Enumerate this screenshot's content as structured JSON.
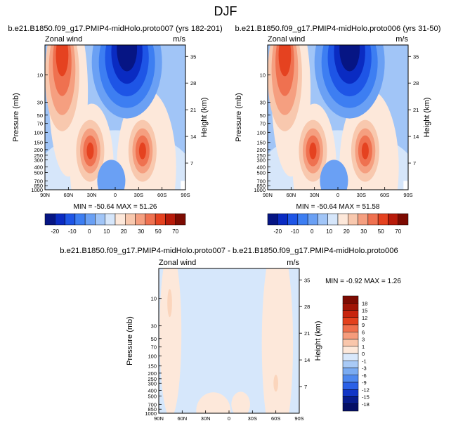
{
  "page_title": "DJF",
  "panels": [
    {
      "title": "b.e21.B1850.f09_g17.PMIP4-midHolo.proto007 (yrs 182-201)",
      "left_label": "Zonal wind",
      "right_label": "m/s",
      "stats": "MIN = -50.64  MAX = 51.26"
    },
    {
      "title": "b.e21.B1850.f09_g17.PMIP4-midHolo.proto006 (yrs 31-50)",
      "left_label": "Zonal wind",
      "right_label": "m/s",
      "stats": "MIN = -50.64  MAX = 51.58"
    },
    {
      "title": "b.e21.B1850.f09_g17.PMIP4-midHolo.proto007 - b.e21.B1850.f09_g17.PMIP4-midHolo.proto006",
      "left_label": "Zonal wind",
      "right_label": "m/s",
      "stats": "MIN = -0.92  MAX =  1.26"
    }
  ],
  "chart_data": [
    {
      "type": "heatmap",
      "title": "b.e21.B1850.f09_g17.PMIP4-midHolo.proto007 (yrs 182-201)",
      "variable": "Zonal wind",
      "units": "m/s",
      "xlabel": "",
      "ylabel": "Pressure (mb)",
      "ylabel_right": "Height (km)",
      "x_ticks": [
        "90N",
        "60N",
        "30N",
        "0",
        "30S",
        "60S",
        "90S"
      ],
      "y_ticks": [
        "10",
        "30",
        "50",
        "70",
        "100",
        "150",
        "200",
        "250",
        "300",
        "400",
        "500",
        "700",
        "850",
        "1000"
      ],
      "y_ticks_right": [
        "35",
        "28",
        "21",
        "14",
        "7"
      ],
      "ylim": [
        1000,
        3
      ],
      "y_scale": "log",
      "min": -50.64,
      "max": 51.26,
      "colorbar_levels": [
        -20,
        -10,
        0,
        10,
        20,
        30,
        50,
        70
      ],
      "features": [
        {
          "kind": "westerly jet",
          "lat": -35,
          "pressure": 200,
          "value": 40
        },
        {
          "kind": "westerly jet",
          "lat": 32,
          "pressure": 200,
          "value": 40
        },
        {
          "kind": "polar night jet",
          "lat": 65,
          "pressure": 8,
          "value": 50
        },
        {
          "kind": "easterlies",
          "lat": -15,
          "pressure": 5,
          "value": -50
        }
      ]
    },
    {
      "type": "heatmap",
      "title": "b.e21.B1850.f09_g17.PMIP4-midHolo.proto006 (yrs 31-50)",
      "variable": "Zonal wind",
      "units": "m/s",
      "xlabel": "",
      "ylabel": "Pressure (mb)",
      "ylabel_right": "Height (km)",
      "x_ticks": [
        "90N",
        "60N",
        "30N",
        "0",
        "30S",
        "60S",
        "90S"
      ],
      "y_ticks": [
        "10",
        "30",
        "50",
        "70",
        "100",
        "150",
        "200",
        "250",
        "300",
        "400",
        "500",
        "700",
        "850",
        "1000"
      ],
      "y_ticks_right": [
        "35",
        "28",
        "21",
        "14",
        "7"
      ],
      "ylim": [
        1000,
        3
      ],
      "y_scale": "log",
      "min": -50.64,
      "max": 51.58,
      "colorbar_levels": [
        -20,
        -10,
        0,
        10,
        20,
        30,
        50,
        70
      ],
      "features": [
        {
          "kind": "westerly jet",
          "lat": -35,
          "pressure": 200,
          "value": 40
        },
        {
          "kind": "westerly jet",
          "lat": 32,
          "pressure": 200,
          "value": 40
        },
        {
          "kind": "polar night jet",
          "lat": 65,
          "pressure": 8,
          "value": 50
        },
        {
          "kind": "easterlies",
          "lat": -15,
          "pressure": 5,
          "value": -50
        }
      ]
    },
    {
      "type": "heatmap",
      "title": "b.e21.B1850.f09_g17.PMIP4-midHolo.proto007 - b.e21.B1850.f09_g17.PMIP4-midHolo.proto006",
      "variable": "Zonal wind",
      "units": "m/s",
      "xlabel": "",
      "ylabel": "Pressure (mb)",
      "ylabel_right": "Height (km)",
      "x_ticks": [
        "90N",
        "60N",
        "30N",
        "0",
        "30S",
        "60S",
        "90S"
      ],
      "y_ticks": [
        "10",
        "30",
        "50",
        "70",
        "100",
        "150",
        "200",
        "250",
        "300",
        "400",
        "500",
        "700",
        "850",
        "1000"
      ],
      "y_ticks_right": [
        "35",
        "28",
        "21",
        "14",
        "7"
      ],
      "ylim": [
        1000,
        3
      ],
      "y_scale": "log",
      "min": -0.92,
      "max": 1.26,
      "colorbar_levels": [
        -18,
        -15,
        -12,
        -9,
        -6,
        -3,
        -1,
        0,
        1,
        3,
        6,
        9,
        12,
        15,
        18
      ],
      "features": [
        {
          "kind": "weak positive band",
          "lat": 75,
          "pressure": 10,
          "value": 0.5
        },
        {
          "kind": "weak positive band",
          "lat": -60,
          "pressure": 100,
          "value": 0.5
        }
      ]
    }
  ],
  "colorbars": [
    {
      "labels": [
        "-20",
        "-10",
        "0",
        "10",
        "20",
        "30",
        "50",
        "70"
      ],
      "colors": [
        "#061584",
        "#0a2bc2",
        "#1e55e6",
        "#3d7ef2",
        "#6aa0f4",
        "#a1c5f7",
        "#d6e6fa",
        "#fde8da",
        "#f8c8ae",
        "#f59f80",
        "#ef7150",
        "#e54220",
        "#b81b0a",
        "#7d0b02"
      ]
    },
    {
      "labels": [
        "-20",
        "-10",
        "0",
        "10",
        "20",
        "30",
        "50",
        "70"
      ],
      "colors": [
        "#061584",
        "#0a2bc2",
        "#1e55e6",
        "#3d7ef2",
        "#6aa0f4",
        "#a1c5f7",
        "#d6e6fa",
        "#fde8da",
        "#f8c8ae",
        "#f59f80",
        "#ef7150",
        "#e54220",
        "#b81b0a",
        "#7d0b02"
      ]
    },
    {
      "labels": [
        "18",
        "15",
        "12",
        "9",
        "6",
        "3",
        "1",
        "0",
        "-1",
        "-3",
        "-6",
        "-9",
        "-12",
        "-15",
        "-18"
      ],
      "colors": [
        "#7d0b02",
        "#a01406",
        "#c7240d",
        "#e3401c",
        "#ef6f4c",
        "#f59c7c",
        "#f9c6ab",
        "#fde8da",
        "#d9e8fb",
        "#a9caf6",
        "#7aabf2",
        "#4e88ef",
        "#2a60e6",
        "#1236c6",
        "#081c8c",
        "#050f66"
      ]
    }
  ]
}
